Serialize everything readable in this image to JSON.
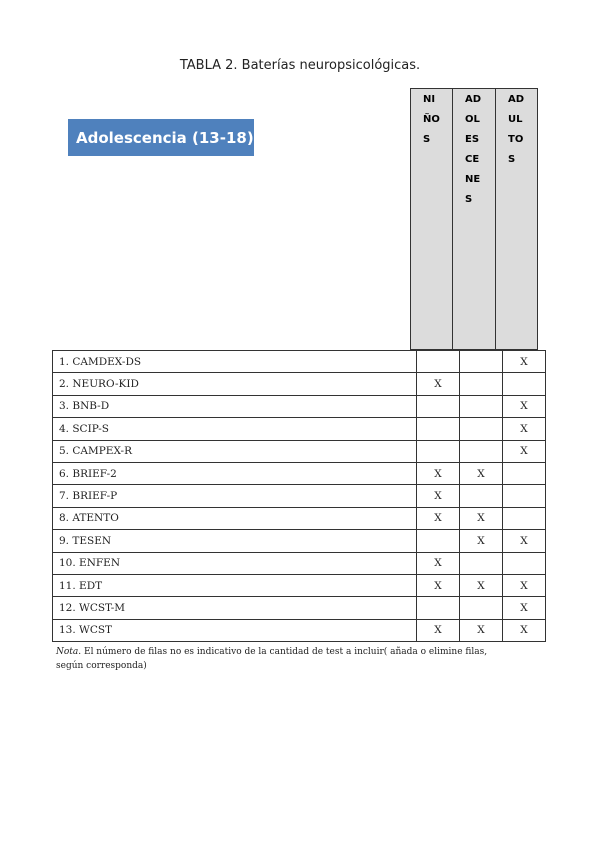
{
  "title": "TABLA 2. Baterías neuropsicológicas.",
  "banner": "Adolescencia (13-18)",
  "banner_color": "#4f81bd",
  "columns": [
    "NI\nÑO\nS",
    "AD\nOL\nES\nCE\nNE\nS",
    "AD\nUL\nTO\nS"
  ],
  "rows": [
    {
      "label": "1.   CAMDEX-DS",
      "marks": [
        "",
        "",
        "X"
      ]
    },
    {
      "label": "2.   NEURO-KID",
      "marks": [
        "X",
        "",
        ""
      ]
    },
    {
      "label": "3.   BNB-D",
      "marks": [
        "",
        "",
        "X"
      ]
    },
    {
      "label": "4.   SCIP-S",
      "marks": [
        "",
        "",
        "X"
      ]
    },
    {
      "label": "5.   CAMPEX-R",
      "marks": [
        "",
        "",
        "X"
      ]
    },
    {
      "label": "6.   BRIEF-2",
      "marks": [
        "X",
        "X",
        ""
      ]
    },
    {
      "label": "7.   BRIEF-P",
      "marks": [
        "X",
        "",
        ""
      ]
    },
    {
      "label": "8.   ATENTO",
      "marks": [
        "X",
        "X",
        ""
      ]
    },
    {
      "label": "9.   TESEN",
      "marks": [
        "",
        "X",
        "X"
      ]
    },
    {
      "label": "10. ENFEN",
      "marks": [
        "X",
        "",
        ""
      ]
    },
    {
      "label": "11. EDT",
      "marks": [
        "X",
        "X",
        "X"
      ]
    },
    {
      "label": "12. WCST-M",
      "marks": [
        "",
        "",
        "X"
      ]
    },
    {
      "label": "13. WCST",
      "marks": [
        "X",
        "X",
        "X"
      ]
    }
  ],
  "note_label": "Nota",
  "note_text": ". El número de filas no es indicativo de la cantidad de test a incluir( añada o elimine filas, según corresponda)"
}
